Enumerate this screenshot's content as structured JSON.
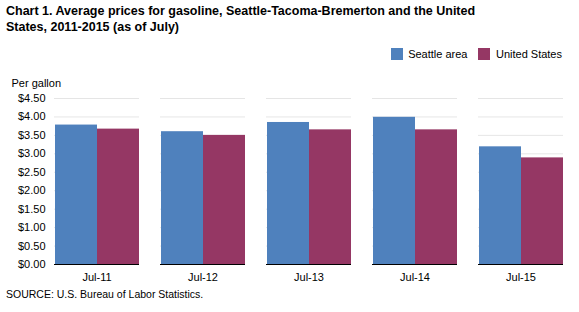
{
  "chart_data": {
    "type": "bar",
    "title": "Chart 1. Average prices for gasoline, Seattle-Tacoma-Bremerton and the United\nStates, 2011-2015  (as of July)",
    "ylabel": "Per gallon",
    "categories": [
      "Jul-11",
      "Jul-12",
      "Jul-13",
      "Jul-14",
      "Jul-15"
    ],
    "series": [
      {
        "name": "Seattle area",
        "color": "#4F81BD",
        "values": [
          3.78,
          3.6,
          3.85,
          3.99,
          3.19
        ]
      },
      {
        "name": "United States",
        "color": "#953764",
        "values": [
          3.67,
          3.5,
          3.65,
          3.65,
          2.89
        ]
      }
    ],
    "ylim": [
      0,
      4.5
    ],
    "yticks": [
      {
        "value": 0.0,
        "label": "$0.00"
      },
      {
        "value": 0.5,
        "label": "$0.50"
      },
      {
        "value": 1.0,
        "label": "$1.00"
      },
      {
        "value": 1.5,
        "label": "$1.50"
      },
      {
        "value": 2.0,
        "label": "$2.00"
      },
      {
        "value": 2.5,
        "label": "$2.50"
      },
      {
        "value": 3.0,
        "label": "$3.00"
      },
      {
        "value": 3.5,
        "label": "$3.50"
      },
      {
        "value": 4.0,
        "label": "$4.00"
      },
      {
        "value": 4.5,
        "label": "$4.50"
      }
    ],
    "grid": true,
    "legend": "upper right",
    "annotations": [
      "SOURCE: U.S. Bureau of Labor Statistics."
    ]
  }
}
